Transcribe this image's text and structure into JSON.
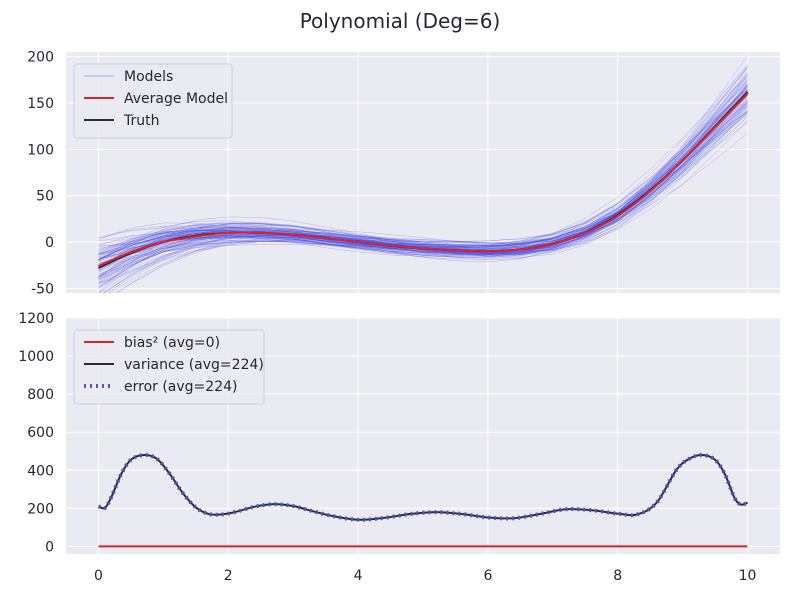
{
  "figure": {
    "title": "Polynomial (Deg=6)",
    "background": "#eaeaf2",
    "grid_color": "#ffffff",
    "text_color": "#262637"
  },
  "chart_data": [
    {
      "type": "line",
      "panel": "top",
      "xlim": [
        -0.5,
        10.5
      ],
      "ylim": [
        -55,
        205
      ],
      "xticks": [
        0,
        2,
        4,
        6,
        8,
        10
      ],
      "xtick_labels_visible": false,
      "yticks": [
        -50,
        0,
        50,
        100,
        150,
        200
      ],
      "grid": true,
      "legend_position": "upper-left",
      "legend": [
        {
          "label": "Models",
          "color": "#4444dd",
          "style": "thin"
        },
        {
          "label": "Average Model",
          "color": "#dd2222",
          "style": "solid"
        },
        {
          "label": "Truth",
          "color": "#2b2b36",
          "style": "solid"
        }
      ],
      "series": [
        {
          "name": "Truth",
          "color": "#2b2b36",
          "x": [
            0,
            0.5,
            1,
            1.5,
            2,
            2.5,
            3,
            3.5,
            4,
            4.5,
            5,
            5.5,
            6,
            6.5,
            7,
            7.5,
            8,
            8.5,
            9,
            9.5,
            10
          ],
          "values": [
            -28,
            -12,
            0,
            7,
            10,
            10,
            8,
            4,
            0,
            -4,
            -7,
            -9,
            -10,
            -8,
            -2,
            10,
            29,
            56,
            88,
            125,
            162
          ]
        },
        {
          "name": "Average Model",
          "color": "#dd2222",
          "x": [
            0,
            0.5,
            1,
            1.5,
            2,
            2.5,
            3,
            3.5,
            4,
            4.5,
            5,
            5.5,
            6,
            6.5,
            7,
            7.5,
            8,
            8.5,
            9,
            9.5,
            10
          ],
          "values": [
            -26,
            -11,
            0,
            6,
            10,
            10,
            8,
            4,
            0,
            -4,
            -7,
            -9,
            -10,
            -8,
            -2,
            10,
            28,
            55,
            88,
            124,
            160
          ]
        }
      ],
      "models": {
        "color": "#4444dd",
        "count": 100,
        "note_visible": false
      }
    },
    {
      "type": "line",
      "panel": "bottom",
      "xlim": [
        -0.5,
        10.5
      ],
      "ylim": [
        -40,
        1200
      ],
      "xticks": [
        0,
        2,
        4,
        6,
        8,
        10
      ],
      "yticks": [
        0,
        200,
        400,
        600,
        800,
        1000,
        1200
      ],
      "grid": true,
      "legend_position": "upper-left",
      "legend": [
        {
          "label": "bias² (avg=0)",
          "color": "#dd2222",
          "style": "solid"
        },
        {
          "label": "variance (avg=224)",
          "color": "#2b2b36",
          "style": "solid"
        },
        {
          "label": "error (avg=224)",
          "color": "#5555bb",
          "style": "dotted"
        }
      ],
      "series": [
        {
          "name": "bias² (avg=0)",
          "color": "#dd2222",
          "x": [
            0,
            10
          ],
          "values": [
            0,
            0
          ]
        },
        {
          "name": "variance (avg=224)",
          "color": "#2b2b36",
          "x": [
            0,
            0.1,
            0.2,
            0.35,
            0.5,
            0.7,
            0.9,
            1.1,
            1.3,
            1.5,
            1.7,
            1.9,
            2.1,
            2.4,
            2.7,
            3.0,
            3.3,
            3.6,
            4.0,
            4.4,
            4.8,
            5.2,
            5.6,
            6.0,
            6.4,
            6.8,
            7.2,
            7.6,
            8.0,
            8.3,
            8.6,
            8.9,
            9.1,
            9.3,
            9.5,
            9.65,
            9.8,
            9.9,
            10
          ],
          "values": [
            210,
            202,
            260,
            380,
            455,
            480,
            460,
            380,
            280,
            205,
            170,
            168,
            180,
            208,
            222,
            212,
            185,
            160,
            140,
            150,
            170,
            180,
            170,
            152,
            148,
            170,
            195,
            190,
            172,
            168,
            230,
            400,
            460,
            480,
            455,
            380,
            255,
            220,
            230
          ]
        },
        {
          "name": "error (avg=224)",
          "color": "#5555bb",
          "x": [
            0,
            0.1,
            0.2,
            0.35,
            0.5,
            0.7,
            0.9,
            1.1,
            1.3,
            1.5,
            1.7,
            1.9,
            2.1,
            2.4,
            2.7,
            3.0,
            3.3,
            3.6,
            4.0,
            4.4,
            4.8,
            5.2,
            5.6,
            6.0,
            6.4,
            6.8,
            7.2,
            7.6,
            8.0,
            8.3,
            8.6,
            8.9,
            9.1,
            9.3,
            9.5,
            9.65,
            9.8,
            9.9,
            10
          ],
          "values": [
            210,
            202,
            260,
            380,
            455,
            480,
            460,
            380,
            280,
            205,
            170,
            168,
            180,
            208,
            222,
            212,
            185,
            160,
            140,
            150,
            170,
            180,
            170,
            152,
            148,
            170,
            195,
            190,
            172,
            168,
            230,
            400,
            460,
            480,
            455,
            380,
            255,
            220,
            230
          ]
        }
      ]
    }
  ]
}
